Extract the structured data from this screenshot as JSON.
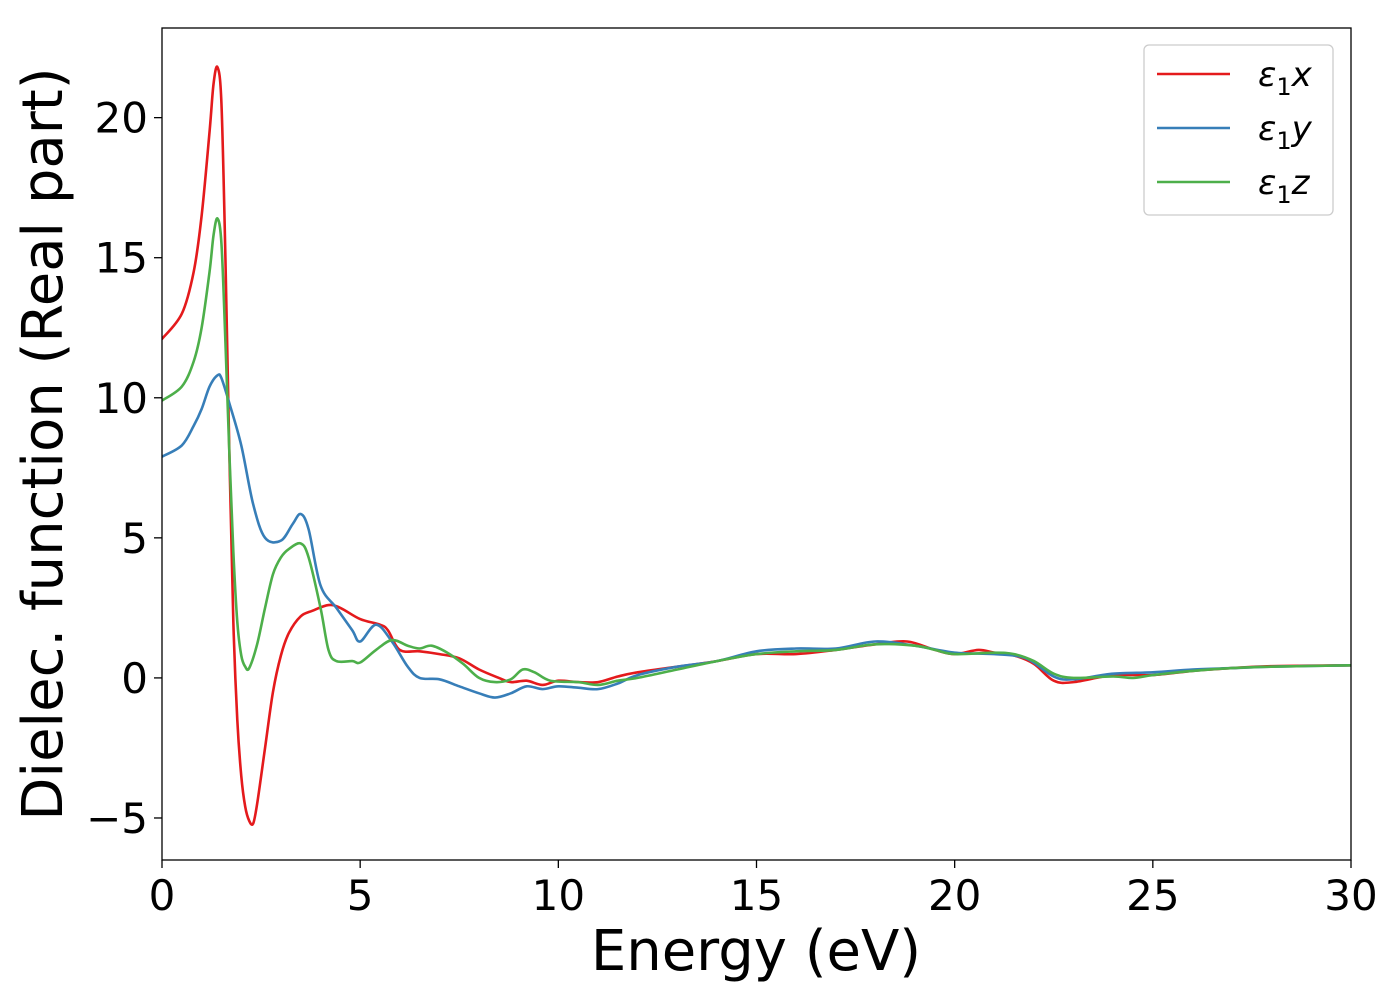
{
  "chart_data": {
    "type": "line",
    "xlabel": "Energy (eV)",
    "ylabel": "Dielec. function (Real part)",
    "xlim": [
      0,
      30
    ],
    "ylim": [
      -6.5,
      23.2
    ],
    "xticks": [
      0,
      5,
      10,
      15,
      20,
      25,
      30
    ],
    "xtick_labels": [
      "0",
      "5",
      "10",
      "15",
      "20",
      "25",
      "30"
    ],
    "yticks": [
      -5,
      0,
      5,
      10,
      15,
      20
    ],
    "ytick_labels": [
      "−5",
      "0",
      "5",
      "10",
      "15",
      "20"
    ],
    "grid": false,
    "legend": "top-right",
    "series": [
      {
        "name": "ε1x",
        "legend_symbol": "ε",
        "legend_sub": "1",
        "legend_suffix": "x",
        "color": "#e41a1c",
        "x": [
          0,
          0.5,
          0.8,
          1.0,
          1.2,
          1.3,
          1.4,
          1.5,
          1.6,
          1.7,
          1.8,
          1.9,
          2.0,
          2.1,
          2.2,
          2.3,
          2.4,
          2.6,
          2.8,
          3.0,
          3.2,
          3.5,
          3.8,
          4.2,
          4.5,
          5.0,
          5.5,
          5.7,
          6.0,
          6.5,
          7.0,
          7.5,
          8.0,
          8.5,
          8.8,
          9.2,
          9.6,
          10.0,
          10.5,
          11.0,
          11.5,
          12.0,
          13.0,
          14.0,
          15.0,
          16.0,
          17.0,
          18.0,
          18.8,
          19.5,
          20.0,
          20.6,
          21.0,
          21.5,
          22.0,
          22.5,
          23.0,
          24.0,
          25.0,
          26.0,
          27.0,
          28.0,
          30.0
        ],
        "y": [
          12.1,
          13.0,
          14.5,
          16.5,
          19.5,
          21.2,
          21.8,
          20.5,
          15.0,
          8.0,
          2.0,
          -1.5,
          -3.5,
          -4.6,
          -5.1,
          -5.2,
          -4.5,
          -2.5,
          -0.5,
          0.8,
          1.6,
          2.2,
          2.4,
          2.6,
          2.5,
          2.1,
          1.9,
          1.7,
          1.0,
          0.95,
          0.85,
          0.7,
          0.3,
          0.0,
          -0.15,
          -0.1,
          -0.25,
          -0.1,
          -0.15,
          -0.15,
          0.05,
          0.2,
          0.4,
          0.6,
          0.85,
          0.85,
          1.0,
          1.2,
          1.3,
          1.0,
          0.85,
          1.0,
          0.9,
          0.8,
          0.5,
          -0.1,
          -0.15,
          0.1,
          0.1,
          0.25,
          0.35,
          0.42,
          0.45
        ]
      },
      {
        "name": "ε1y",
        "legend_symbol": "ε",
        "legend_sub": "1",
        "legend_suffix": "y",
        "color": "#377eb8",
        "x": [
          0,
          0.5,
          0.8,
          1.0,
          1.2,
          1.4,
          1.5,
          1.7,
          2.0,
          2.3,
          2.6,
          3.0,
          3.3,
          3.5,
          3.7,
          4.0,
          4.4,
          4.8,
          5.0,
          5.4,
          5.8,
          6.2,
          6.5,
          7.0,
          7.5,
          8.0,
          8.4,
          8.8,
          9.2,
          9.6,
          10.0,
          10.5,
          11.0,
          11.5,
          12.0,
          13.0,
          14.0,
          15.0,
          16.0,
          17.0,
          18.0,
          19.0,
          20.0,
          21.0,
          21.8,
          22.5,
          23.0,
          24.0,
          25.0,
          26.0,
          27.0,
          28.0,
          30.0
        ],
        "y": [
          7.9,
          8.3,
          9.0,
          9.6,
          10.4,
          10.8,
          10.7,
          9.8,
          8.3,
          6.2,
          5.0,
          4.9,
          5.5,
          5.85,
          5.3,
          3.3,
          2.5,
          1.7,
          1.3,
          1.9,
          1.3,
          0.4,
          0.0,
          -0.05,
          -0.3,
          -0.55,
          -0.7,
          -0.55,
          -0.3,
          -0.4,
          -0.3,
          -0.35,
          -0.4,
          -0.2,
          0.1,
          0.4,
          0.6,
          0.95,
          1.05,
          1.05,
          1.3,
          1.15,
          0.9,
          0.85,
          0.7,
          0.05,
          -0.05,
          0.15,
          0.2,
          0.3,
          0.35,
          0.4,
          0.45
        ]
      },
      {
        "name": "ε1z",
        "legend_symbol": "ε",
        "legend_sub": "1",
        "legend_suffix": "z",
        "color": "#4daf4a",
        "x": [
          0,
          0.5,
          0.8,
          1.0,
          1.2,
          1.3,
          1.4,
          1.5,
          1.6,
          1.7,
          1.8,
          1.9,
          2.0,
          2.1,
          2.2,
          2.4,
          2.6,
          2.8,
          3.0,
          3.2,
          3.5,
          3.7,
          4.0,
          4.2,
          4.4,
          4.8,
          5.0,
          5.4,
          5.8,
          6.2,
          6.5,
          6.8,
          7.2,
          7.6,
          8.0,
          8.4,
          8.8,
          9.1,
          9.4,
          9.8,
          10.5,
          11.0,
          11.5,
          12.0,
          13.0,
          14.0,
          15.0,
          16.0,
          17.0,
          18.0,
          19.0,
          19.5,
          20.0,
          21.0,
          21.5,
          22.0,
          22.5,
          23.0,
          24.0,
          24.5,
          25.0,
          26.0,
          27.0,
          28.0,
          30.0
        ],
        "y": [
          9.9,
          10.4,
          11.3,
          12.5,
          14.5,
          15.8,
          16.4,
          15.5,
          12.0,
          8.0,
          4.5,
          2.0,
          0.8,
          0.4,
          0.35,
          1.2,
          2.5,
          3.7,
          4.3,
          4.6,
          4.8,
          4.3,
          2.5,
          1.0,
          0.6,
          0.6,
          0.55,
          1.0,
          1.35,
          1.15,
          1.05,
          1.15,
          0.9,
          0.5,
          0.0,
          -0.15,
          -0.05,
          0.3,
          0.2,
          -0.1,
          -0.15,
          -0.25,
          -0.1,
          0.0,
          0.3,
          0.6,
          0.85,
          0.95,
          1.0,
          1.2,
          1.15,
          1.0,
          0.85,
          0.9,
          0.85,
          0.6,
          0.15,
          0.0,
          0.05,
          0.0,
          0.1,
          0.25,
          0.35,
          0.4,
          0.45
        ]
      }
    ]
  }
}
